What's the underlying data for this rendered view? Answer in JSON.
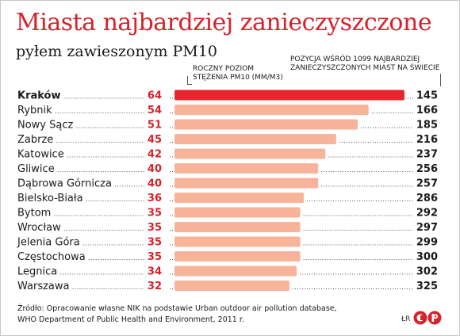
{
  "header": {
    "title": "Miasta najbardziej zanieczyszczone",
    "subtitle": "pyłem zawieszonym PM10"
  },
  "notes": {
    "concentration_line1": "ROCZNY POZIOM",
    "concentration_line2": "STĘŻENIA PM10 (µm/m3)",
    "ranking_line1": "POZYCJA WŚRÓD 1099 NAJBARDZIEJ",
    "ranking_line2": "ZANIECZYSZCZONYCH MIAST NA ŚWIECIE"
  },
  "footer": {
    "source_line1": "Źródło: Opracowanie własne NIK na podstawie Urban outdoor air pollution database,",
    "source_line2": "WHO Department of Public Health and Environment, 2011 r.",
    "author": "ŁR",
    "logo_text": "©P"
  },
  "colors": {
    "highlight": "#e8262e",
    "bar": "#f7b49a",
    "value": "#d4232b",
    "text": "#1a1a1a"
  },
  "chart_data": {
    "type": "bar",
    "orientation": "horizontal",
    "categories": [
      "Kraków",
      "Rybnik",
      "Nowy Sącz",
      "Zabrze",
      "Katowice",
      "Gliwice",
      "Dąbrowa Górnicza",
      "Bielsko-Biała",
      "Bytom",
      "Wrocław",
      "Jelenia Góra",
      "Częstochowa",
      "Legnica",
      "Warszawa"
    ],
    "values": [
      64,
      54,
      51,
      45,
      42,
      40,
      40,
      36,
      35,
      35,
      35,
      35,
      34,
      32
    ],
    "rankings": [
      145,
      166,
      185,
      216,
      237,
      256,
      257,
      286,
      292,
      297,
      299,
      300,
      302,
      325
    ],
    "highlighted_index": 0,
    "xlim": [
      0,
      64
    ]
  }
}
